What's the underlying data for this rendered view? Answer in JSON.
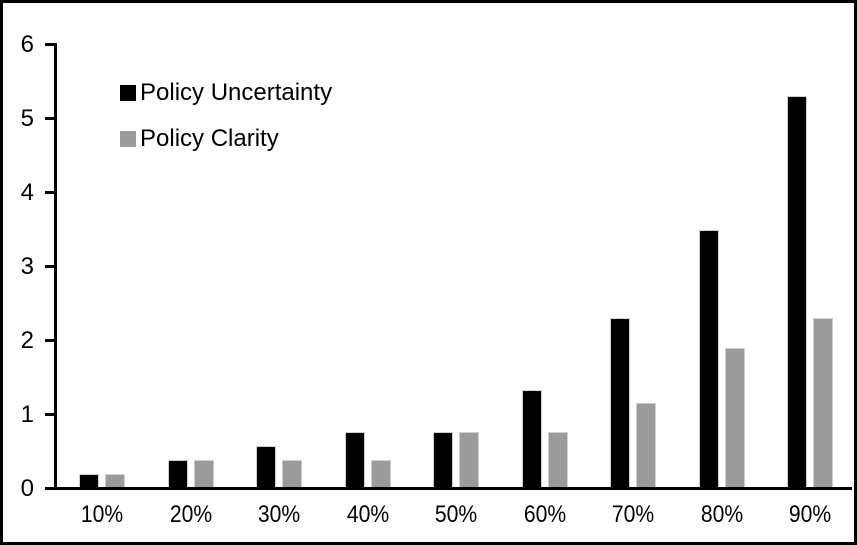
{
  "chart_data": {
    "type": "bar",
    "title": "",
    "xlabel": "",
    "ylabel": "",
    "categories": [
      "10%",
      "20%",
      "30%",
      "40%",
      "50%",
      "60%",
      "70%",
      "80%",
      "90%"
    ],
    "series": [
      {
        "name": "Policy Uncertainty",
        "color": "#000000",
        "values": [
          0.2,
          0.38,
          0.57,
          0.76,
          0.76,
          1.33,
          2.3,
          3.5,
          5.3
        ]
      },
      {
        "name": "Policy Clarity",
        "color": "#9b9b9b",
        "values": [
          0.2,
          0.38,
          0.38,
          0.38,
          0.76,
          0.76,
          1.15,
          1.9,
          2.3
        ]
      }
    ],
    "ylim": [
      0,
      6
    ],
    "yticks": [
      0,
      1,
      2,
      3,
      4,
      5,
      6
    ],
    "legend_position": "top-left",
    "grid": false,
    "axis_color": "#000000",
    "background_color": "#ffffff",
    "border_color": "#000000"
  }
}
